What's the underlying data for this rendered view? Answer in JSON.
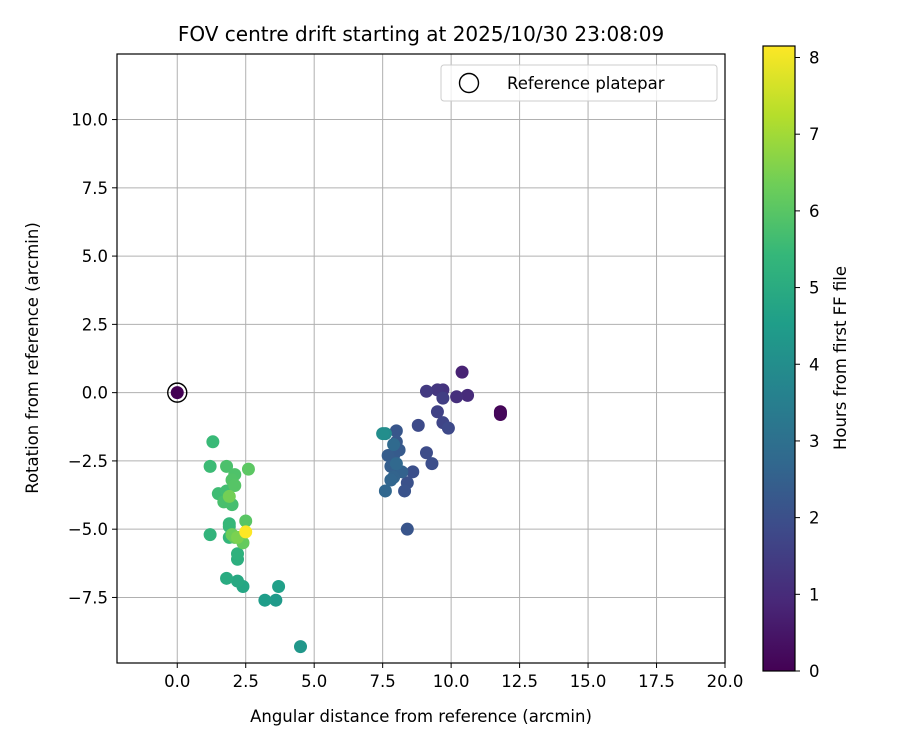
{
  "chart_data": {
    "type": "scatter",
    "title": "FOV centre drift starting at 2025/10/30 23:08:09",
    "xlabel": "Angular distance from reference (arcmin)",
    "ylabel": "Rotation from reference (arcmin)",
    "xlim": [
      -2.2,
      20.0
    ],
    "ylim": [
      -9.9,
      12.4
    ],
    "xticks": [
      0.0,
      2.5,
      5.0,
      7.5,
      10.0,
      12.5,
      15.0,
      17.5,
      20.0
    ],
    "xtick_labels": [
      "0.0",
      "2.5",
      "5.0",
      "7.5",
      "10.0",
      "12.5",
      "15.0",
      "17.5",
      "20.0"
    ],
    "yticks": [
      -7.5,
      -5.0,
      -2.5,
      0.0,
      2.5,
      5.0,
      7.5,
      10.0
    ],
    "ytick_labels": [
      "−7.5",
      "−5.0",
      "−2.5",
      "0.0",
      "2.5",
      "5.0",
      "7.5",
      "10.0"
    ],
    "grid": true,
    "legend": {
      "position": "upper-right",
      "entries": [
        "Reference platepar"
      ]
    },
    "colorbar": {
      "label": "Hours from first FF file",
      "min": 0,
      "max": 8.15,
      "ticks": [
        0,
        1,
        2,
        3,
        4,
        5,
        6,
        7,
        8
      ],
      "tick_labels": [
        "0",
        "1",
        "2",
        "3",
        "4",
        "5",
        "6",
        "7",
        "8"
      ],
      "colormap": [
        "#440154",
        "#482878",
        "#3e4989",
        "#31688e",
        "#26828e",
        "#1f9e89",
        "#35b779",
        "#6ece58",
        "#b5de2b",
        "#fde725"
      ]
    },
    "reference": {
      "x": 0.0,
      "y": 0.0,
      "c": 0.0
    },
    "points": [
      {
        "x": 11.8,
        "y": -0.7,
        "c": 0.05
      },
      {
        "x": 11.8,
        "y": -0.8,
        "c": 0.1
      },
      {
        "x": 11.8,
        "y": -0.75,
        "c": 0.15
      },
      {
        "x": 10.4,
        "y": 0.75,
        "c": 0.8
      },
      {
        "x": 10.6,
        "y": -0.1,
        "c": 1.0
      },
      {
        "x": 10.2,
        "y": -0.15,
        "c": 1.1
      },
      {
        "x": 9.7,
        "y": 0.1,
        "c": 1.2
      },
      {
        "x": 9.5,
        "y": 0.1,
        "c": 1.3
      },
      {
        "x": 9.1,
        "y": 0.05,
        "c": 1.4
      },
      {
        "x": 9.7,
        "y": -0.2,
        "c": 1.5
      },
      {
        "x": 9.5,
        "y": -0.7,
        "c": 1.6
      },
      {
        "x": 9.7,
        "y": -1.1,
        "c": 1.7
      },
      {
        "x": 9.9,
        "y": -1.3,
        "c": 1.8
      },
      {
        "x": 8.8,
        "y": -1.2,
        "c": 1.85
      },
      {
        "x": 9.1,
        "y": -2.2,
        "c": 1.9
      },
      {
        "x": 9.3,
        "y": -2.6,
        "c": 1.95
      },
      {
        "x": 8.6,
        "y": -2.9,
        "c": 2.0
      },
      {
        "x": 8.4,
        "y": -3.3,
        "c": 2.05
      },
      {
        "x": 8.3,
        "y": -3.6,
        "c": 2.1
      },
      {
        "x": 8.4,
        "y": -5.0,
        "c": 2.15
      },
      {
        "x": 8.0,
        "y": -1.4,
        "c": 2.2
      },
      {
        "x": 8.0,
        "y": -1.8,
        "c": 2.25
      },
      {
        "x": 8.1,
        "y": -2.1,
        "c": 2.3
      },
      {
        "x": 7.9,
        "y": -2.3,
        "c": 2.35
      },
      {
        "x": 7.7,
        "y": -2.3,
        "c": 2.4
      },
      {
        "x": 7.8,
        "y": -2.7,
        "c": 2.45
      },
      {
        "x": 8.0,
        "y": -2.9,
        "c": 2.5
      },
      {
        "x": 8.2,
        "y": -2.9,
        "c": 2.55
      },
      {
        "x": 7.9,
        "y": -3.1,
        "c": 2.6
      },
      {
        "x": 7.8,
        "y": -3.2,
        "c": 2.65
      },
      {
        "x": 7.6,
        "y": -3.6,
        "c": 2.7
      },
      {
        "x": 8.0,
        "y": -2.6,
        "c": 2.75
      },
      {
        "x": 7.9,
        "y": -1.9,
        "c": 2.8
      },
      {
        "x": 7.6,
        "y": -1.5,
        "c": 3.9
      },
      {
        "x": 7.5,
        "y": -1.5,
        "c": 4.0
      },
      {
        "x": 4.5,
        "y": -9.3,
        "c": 4.3
      },
      {
        "x": 3.6,
        "y": -7.6,
        "c": 4.4
      },
      {
        "x": 3.2,
        "y": -7.6,
        "c": 4.5
      },
      {
        "x": 3.7,
        "y": -7.1,
        "c": 4.6
      },
      {
        "x": 2.4,
        "y": -7.1,
        "c": 4.8
      },
      {
        "x": 2.2,
        "y": -6.9,
        "c": 4.9
      },
      {
        "x": 1.8,
        "y": -6.8,
        "c": 5.0
      },
      {
        "x": 2.2,
        "y": -6.1,
        "c": 5.1
      },
      {
        "x": 2.2,
        "y": -5.9,
        "c": 5.2
      },
      {
        "x": 1.2,
        "y": -5.2,
        "c": 5.3
      },
      {
        "x": 1.9,
        "y": -5.3,
        "c": 5.35
      },
      {
        "x": 1.9,
        "y": -4.8,
        "c": 5.4
      },
      {
        "x": 1.9,
        "y": -4.9,
        "c": 5.45
      },
      {
        "x": 1.3,
        "y": -1.8,
        "c": 5.5
      },
      {
        "x": 1.2,
        "y": -2.7,
        "c": 5.55
      },
      {
        "x": 1.5,
        "y": -3.7,
        "c": 5.6
      },
      {
        "x": 1.8,
        "y": -3.6,
        "c": 5.65
      },
      {
        "x": 2.0,
        "y": -4.1,
        "c": 5.7
      },
      {
        "x": 1.7,
        "y": -4.0,
        "c": 5.75
      },
      {
        "x": 1.8,
        "y": -2.7,
        "c": 5.8
      },
      {
        "x": 2.1,
        "y": -3.0,
        "c": 5.85
      },
      {
        "x": 2.0,
        "y": -3.2,
        "c": 5.9
      },
      {
        "x": 2.1,
        "y": -3.4,
        "c": 5.95
      },
      {
        "x": 2.5,
        "y": -4.7,
        "c": 6.0
      },
      {
        "x": 2.6,
        "y": -2.8,
        "c": 6.05
      },
      {
        "x": 2.1,
        "y": -5.3,
        "c": 6.1
      },
      {
        "x": 2.4,
        "y": -5.5,
        "c": 6.2
      },
      {
        "x": 2.0,
        "y": -5.2,
        "c": 6.3
      },
      {
        "x": 1.9,
        "y": -3.8,
        "c": 6.4
      },
      {
        "x": 2.2,
        "y": -5.3,
        "c": 6.5
      },
      {
        "x": 2.5,
        "y": -5.1,
        "c": 8.15
      }
    ]
  }
}
